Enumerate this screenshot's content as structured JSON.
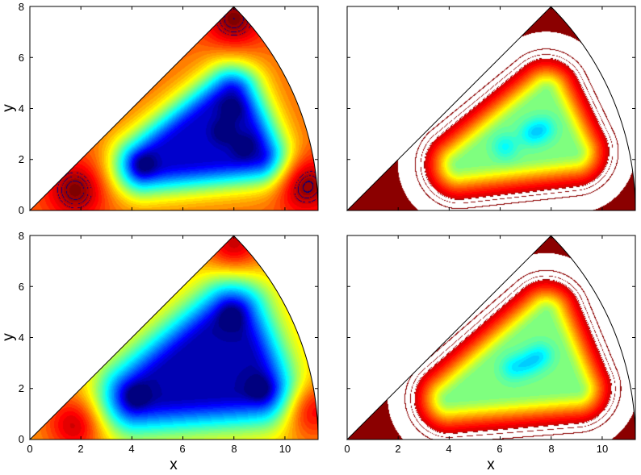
{
  "figure": {
    "background": "#ffffff",
    "colormap_jet": [
      "#00007f",
      "#0000ff",
      "#007fff",
      "#00ffff",
      "#7fff7f",
      "#ffff00",
      "#ff7f00",
      "#ff0000",
      "#7f0000"
    ],
    "contour_line_color_left": "#000080",
    "contour_line_color_right": "#8b0000"
  },
  "chart_data": [
    {
      "type": "heatmap",
      "panel": "top-left",
      "subtype": "filled contour (jet colormap) on circular-sector domain",
      "domain": {
        "apex": [
          0,
          0
        ],
        "edge_angle_deg": 45,
        "radius": 11.3
      },
      "xlim": [
        0,
        11.3
      ],
      "ylim": [
        0,
        8
      ],
      "xticks": [],
      "yticks": [
        0,
        2,
        4,
        6,
        8
      ],
      "xlabel": "",
      "ylabel": "y",
      "features": {
        "low_well_triangle": [
          [
            4.5,
            1.8
          ],
          [
            7.9,
            4.5
          ],
          [
            8.9,
            2.2
          ]
        ],
        "minima": [
          [
            4.5,
            1.8
          ],
          [
            7.6,
            3.1
          ],
          [
            7.9,
            4.0
          ],
          [
            8.4,
            2.5
          ]
        ],
        "high_regions": [
          [
            1.8,
            0.8
          ],
          [
            8.0,
            7.5
          ],
          [
            10.8,
            1.0
          ]
        ]
      },
      "value_range": [
        0,
        1
      ],
      "background_value": 0.78,
      "well_depth": 0.7,
      "well_width": 1.2
    },
    {
      "type": "heatmap",
      "panel": "top-right",
      "subtype": "filled contour (jet colormap) on circular-sector domain",
      "domain": {
        "apex": [
          0,
          0
        ],
        "edge_angle_deg": 45,
        "radius": 11.3
      },
      "xlim": [
        0,
        11.3
      ],
      "ylim": [
        0,
        8
      ],
      "xticks": [],
      "yticks": [],
      "xlabel": "",
      "ylabel": "",
      "features": {
        "low_well_triangle": [
          [
            4.4,
            1.8
          ],
          [
            7.8,
            4.6
          ],
          [
            8.9,
            2.3
          ]
        ],
        "minima": [
          [
            7.2,
            3.0
          ],
          [
            7.7,
            3.2
          ],
          [
            6.2,
            2.5
          ]
        ],
        "high_regions": []
      },
      "value_range": [
        0,
        1
      ],
      "background_value": 1.0,
      "well_depth": 0.5,
      "well_width": 1.0
    },
    {
      "type": "heatmap",
      "panel": "bottom-left",
      "subtype": "filled contour (jet colormap) on circular-sector domain",
      "domain": {
        "apex": [
          0,
          0
        ],
        "edge_angle_deg": 45,
        "radius": 11.3
      },
      "xlim": [
        0,
        11.3
      ],
      "ylim": [
        0,
        8
      ],
      "xticks": [
        0,
        2,
        4,
        6,
        8,
        10
      ],
      "yticks": [
        0,
        2,
        4,
        6,
        8
      ],
      "xlabel": "x",
      "ylabel": "y",
      "features": {
        "low_well_triangle": [
          [
            4.2,
            1.7
          ],
          [
            7.9,
            4.8
          ],
          [
            9.0,
            2.0
          ]
        ],
        "minima": [
          [
            4.2,
            1.7
          ],
          [
            7.9,
            4.8
          ],
          [
            9.0,
            2.0
          ]
        ],
        "high_regions": [
          [
            1.8,
            0.6
          ],
          [
            8.0,
            7.6
          ],
          [
            10.9,
            1.2
          ]
        ]
      },
      "value_range": [
        0,
        1
      ],
      "background_value": 0.72,
      "well_depth": 0.68,
      "well_width": 1.5
    },
    {
      "type": "heatmap",
      "panel": "bottom-right",
      "subtype": "filled contour (jet colormap) on circular-sector domain",
      "domain": {
        "apex": [
          0,
          0
        ],
        "edge_angle_deg": 45,
        "radius": 11.3
      },
      "xlim": [
        0,
        11.3
      ],
      "ylim": [
        0,
        8
      ],
      "xticks": [
        0,
        2,
        4,
        6,
        8,
        10
      ],
      "yticks": [],
      "xlabel": "x",
      "ylabel": "",
      "features": {
        "low_well_triangle": [
          [
            4.0,
            1.6
          ],
          [
            7.8,
            4.9
          ],
          [
            9.0,
            2.0
          ]
        ],
        "minima": [
          [
            7.1,
            3.0
          ],
          [
            7.6,
            3.3
          ],
          [
            6.5,
            2.8
          ]
        ],
        "high_regions": []
      },
      "value_range": [
        0,
        1
      ],
      "background_value": 1.0,
      "well_depth": 0.5,
      "well_width": 1.0
    }
  ]
}
